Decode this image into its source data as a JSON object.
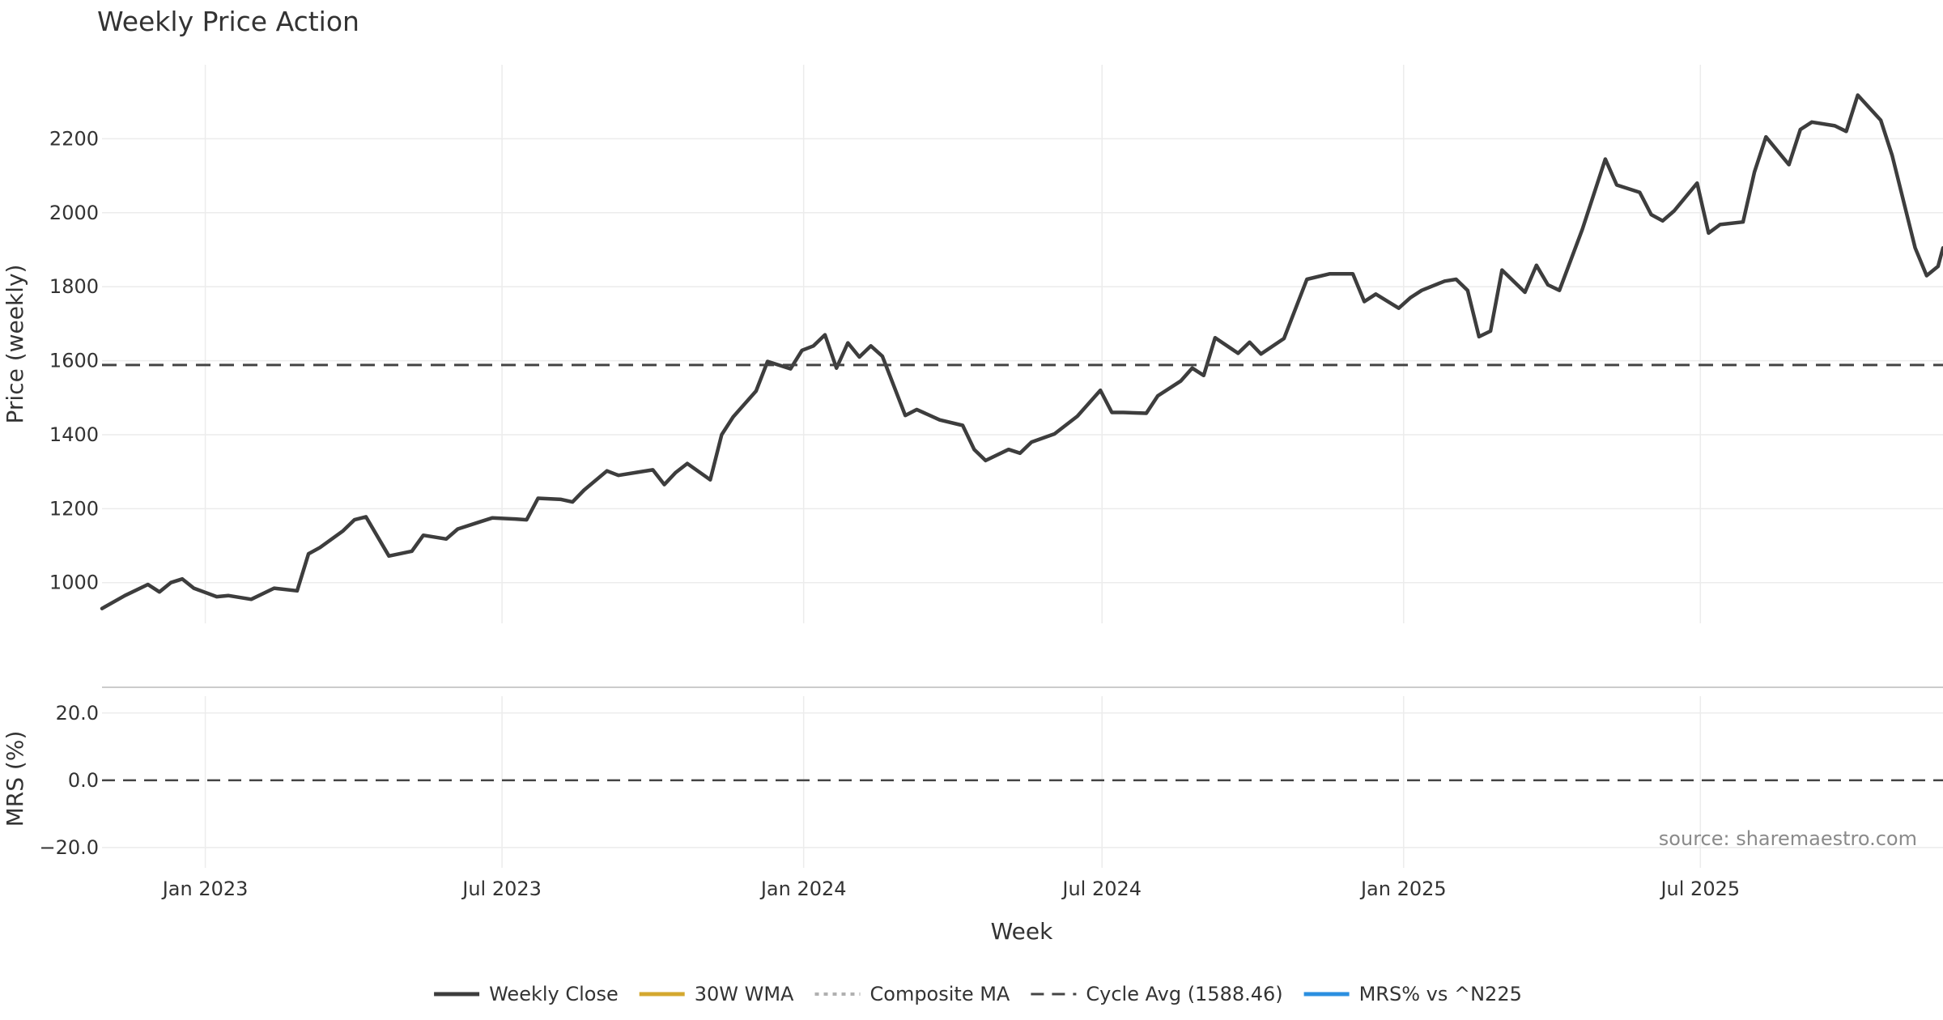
{
  "chart_data": {
    "type": "line",
    "title": "Weekly Price Action",
    "xlabel": "Week",
    "source": "source: sharemaestro.com",
    "colors": {
      "close": "#3d3d3d",
      "wma": "#d4a82f",
      "composite": "#b0b0b0",
      "cycle": "#444444",
      "mrs": "#2b8fe0",
      "signal_up": "#1aa01a",
      "signal_down": "#cc1111",
      "grid": "#ececec"
    },
    "x_ticks": [
      {
        "date": "2023-01-01",
        "label": "Jan 2023"
      },
      {
        "date": "2023-07-01",
        "label": "Jul 2023"
      },
      {
        "date": "2024-01-01",
        "label": "Jan 2024"
      },
      {
        "date": "2024-07-01",
        "label": "Jul 2024"
      },
      {
        "date": "2025-01-01",
        "label": "Jan 2025"
      },
      {
        "date": "2025-07-01",
        "label": "Jul 2025"
      }
    ],
    "x_range": [
      "2022-10-30",
      "2025-11-26"
    ],
    "price_panel": {
      "ylabel": "Price (weekly)",
      "ylim": [
        890,
        2400
      ],
      "yticks": [
        1000,
        1200,
        1400,
        1600,
        1800,
        2000,
        2200
      ],
      "grid": true
    },
    "mrs_panel": {
      "ylabel": "MRS (%)",
      "ylim": [
        -26,
        25
      ],
      "yticks": [
        20,
        0,
        -20
      ],
      "ytick_labels": [
        "20.0",
        "0.0",
        "−20.0"
      ],
      "zero_line": 0,
      "grid": true
    },
    "cycle_avg": 1588.46,
    "series": [
      {
        "name": "Weekly Close",
        "key": "close",
        "points": [
          [
            "2022-10-30",
            930
          ],
          [
            "2022-11-13",
            965
          ],
          [
            "2022-11-27",
            995
          ],
          [
            "2022-12-04",
            975
          ],
          [
            "2022-12-11",
            1000
          ],
          [
            "2022-12-18",
            1010
          ],
          [
            "2022-12-25",
            985
          ],
          [
            "2023-01-08",
            962
          ],
          [
            "2023-01-15",
            965
          ],
          [
            "2023-01-29",
            955
          ],
          [
            "2023-02-12",
            985
          ],
          [
            "2023-02-26",
            978
          ],
          [
            "2023-03-05",
            1078
          ],
          [
            "2023-03-12",
            1095
          ],
          [
            "2023-03-26",
            1140
          ],
          [
            "2023-04-02",
            1170
          ],
          [
            "2023-04-09",
            1178
          ],
          [
            "2023-04-23",
            1072
          ],
          [
            "2023-05-07",
            1085
          ],
          [
            "2023-05-14",
            1128
          ],
          [
            "2023-05-28",
            1118
          ],
          [
            "2023-06-04",
            1145
          ],
          [
            "2023-06-18",
            1165
          ],
          [
            "2023-06-25",
            1175
          ],
          [
            "2023-07-09",
            1172
          ],
          [
            "2023-07-16",
            1170
          ],
          [
            "2023-07-23",
            1228
          ],
          [
            "2023-08-06",
            1225
          ],
          [
            "2023-08-13",
            1218
          ],
          [
            "2023-08-20",
            1250
          ],
          [
            "2023-09-03",
            1302
          ],
          [
            "2023-09-10",
            1290
          ],
          [
            "2023-09-24",
            1300
          ],
          [
            "2023-10-01",
            1305
          ],
          [
            "2023-10-08",
            1265
          ],
          [
            "2023-10-15",
            1298
          ],
          [
            "2023-10-22",
            1322
          ],
          [
            "2023-11-05",
            1278
          ],
          [
            "2023-11-12",
            1400
          ],
          [
            "2023-11-19",
            1448
          ],
          [
            "2023-12-03",
            1518
          ],
          [
            "2023-12-10",
            1598
          ],
          [
            "2023-12-24",
            1578
          ],
          [
            "2023-12-31",
            1628
          ],
          [
            "2024-01-07",
            1640
          ],
          [
            "2024-01-14",
            1670
          ],
          [
            "2024-01-21",
            1580
          ],
          [
            "2024-01-28",
            1648
          ],
          [
            "2024-02-04",
            1610
          ],
          [
            "2024-02-11",
            1640
          ],
          [
            "2024-02-18",
            1612
          ],
          [
            "2024-03-03",
            1452
          ],
          [
            "2024-03-10",
            1468
          ],
          [
            "2024-03-24",
            1440
          ],
          [
            "2024-04-07",
            1425
          ],
          [
            "2024-04-14",
            1360
          ],
          [
            "2024-04-21",
            1330
          ],
          [
            "2024-05-05",
            1360
          ],
          [
            "2024-05-12",
            1350
          ],
          [
            "2024-05-19",
            1380
          ],
          [
            "2024-06-02",
            1402
          ],
          [
            "2024-06-16",
            1450
          ],
          [
            "2024-06-30",
            1520
          ],
          [
            "2024-07-07",
            1460
          ],
          [
            "2024-07-14",
            1460
          ],
          [
            "2024-07-28",
            1458
          ],
          [
            "2024-08-04",
            1505
          ],
          [
            "2024-08-18",
            1545
          ],
          [
            "2024-08-25",
            1580
          ],
          [
            "2024-09-01",
            1560
          ],
          [
            "2024-09-08",
            1662
          ],
          [
            "2024-09-22",
            1620
          ],
          [
            "2024-09-29",
            1650
          ],
          [
            "2024-10-06",
            1618
          ],
          [
            "2024-10-20",
            1660
          ],
          [
            "2024-11-03",
            1820
          ],
          [
            "2024-11-17",
            1835
          ],
          [
            "2024-12-01",
            1835
          ],
          [
            "2024-12-08",
            1760
          ],
          [
            "2024-12-15",
            1780
          ],
          [
            "2024-12-29",
            1742
          ],
          [
            "2025-01-05",
            1770
          ],
          [
            "2025-01-12",
            1790
          ],
          [
            "2025-01-26",
            1815
          ],
          [
            "2025-02-02",
            1820
          ],
          [
            "2025-02-09",
            1790
          ],
          [
            "2025-02-16",
            1665
          ],
          [
            "2025-02-23",
            1680
          ],
          [
            "2025-03-02",
            1845
          ],
          [
            "2025-03-16",
            1785
          ],
          [
            "2025-03-23",
            1858
          ],
          [
            "2025-03-30",
            1805
          ],
          [
            "2025-04-06",
            1790
          ],
          [
            "2025-04-20",
            1955
          ],
          [
            "2025-05-04",
            2145
          ],
          [
            "2025-05-11",
            2075
          ],
          [
            "2025-05-25",
            2055
          ],
          [
            "2025-06-01",
            1995
          ],
          [
            "2025-06-08",
            1978
          ],
          [
            "2025-06-15",
            2005
          ],
          [
            "2025-06-29",
            2080
          ],
          [
            "2025-07-06",
            1945
          ],
          [
            "2025-07-13",
            1968
          ],
          [
            "2025-07-27",
            1975
          ],
          [
            "2025-08-03",
            2110
          ],
          [
            "2025-08-10",
            2205
          ],
          [
            "2025-08-24",
            2130
          ],
          [
            "2025-08-31",
            2225
          ],
          [
            "2025-09-07",
            2245
          ],
          [
            "2025-09-21",
            2235
          ],
          [
            "2025-09-28",
            2220
          ],
          [
            "2025-10-05",
            2318
          ],
          [
            "2025-10-19",
            2250
          ],
          [
            "2025-10-26",
            2155
          ],
          [
            "2025-11-09",
            1905
          ],
          [
            "2025-11-16",
            1830
          ],
          [
            "2025-11-23",
            1855
          ],
          [
            "2025-11-26",
            1905
          ]
        ]
      }
    ]
  },
  "legend": [
    {
      "key": "close",
      "label": "Weekly Close",
      "style": "solid"
    },
    {
      "key": "wma",
      "label": "30W WMA",
      "style": "solid"
    },
    {
      "key": "composite",
      "label": "Composite MA",
      "style": "dotted"
    },
    {
      "key": "cycle",
      "label": "Cycle Avg (1588.46)",
      "style": "dashed"
    },
    {
      "key": "mrs",
      "label": "MRS% vs ^N225",
      "style": "solid"
    }
  ]
}
